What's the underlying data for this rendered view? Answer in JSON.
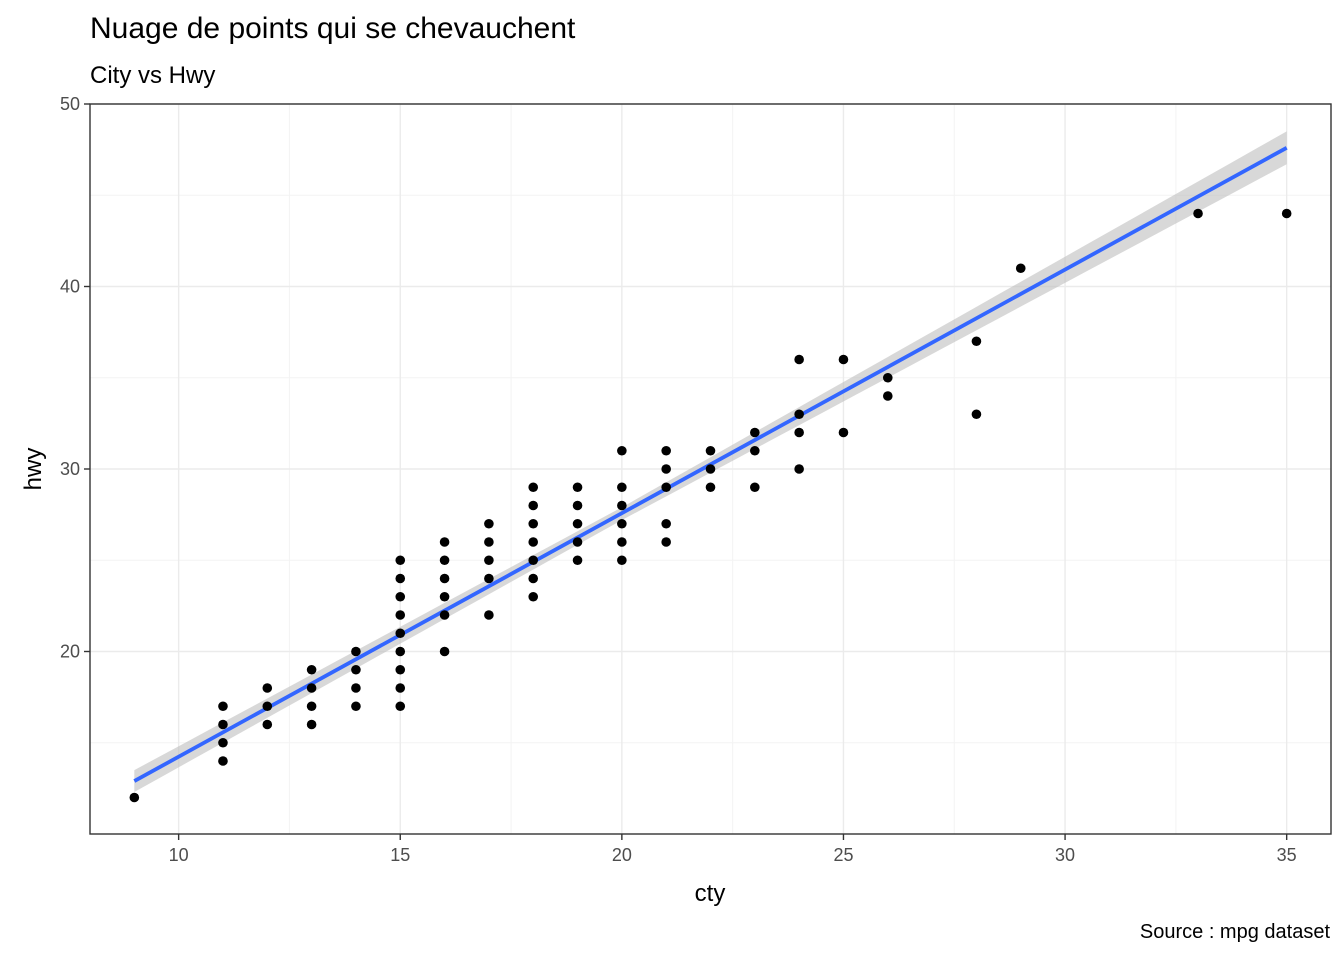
{
  "chart_data": {
    "type": "scatter",
    "title": "Nuage de points qui se chevauchent",
    "subtitle": "City vs Hwy",
    "caption": "Source : mpg dataset",
    "xlabel": "cty",
    "ylabel": "hwy",
    "xlim": [
      8,
      36
    ],
    "ylim": [
      10,
      50
    ],
    "x_ticks": [
      10,
      15,
      20,
      25,
      30,
      35
    ],
    "y_ticks": [
      20,
      30,
      40,
      50
    ],
    "grid": true,
    "points": [
      [
        9,
        12
      ],
      [
        11,
        14
      ],
      [
        11,
        15
      ],
      [
        11,
        16
      ],
      [
        11,
        17
      ],
      [
        12,
        16
      ],
      [
        12,
        17
      ],
      [
        12,
        18
      ],
      [
        13,
        16
      ],
      [
        13,
        17
      ],
      [
        13,
        18
      ],
      [
        13,
        19
      ],
      [
        14,
        17
      ],
      [
        14,
        18
      ],
      [
        14,
        19
      ],
      [
        14,
        20
      ],
      [
        15,
        17
      ],
      [
        15,
        18
      ],
      [
        15,
        19
      ],
      [
        15,
        20
      ],
      [
        15,
        21
      ],
      [
        15,
        22
      ],
      [
        15,
        23
      ],
      [
        15,
        24
      ],
      [
        15,
        25
      ],
      [
        16,
        20
      ],
      [
        16,
        22
      ],
      [
        16,
        23
      ],
      [
        16,
        24
      ],
      [
        16,
        25
      ],
      [
        16,
        26
      ],
      [
        17,
        22
      ],
      [
        17,
        24
      ],
      [
        17,
        25
      ],
      [
        17,
        26
      ],
      [
        17,
        27
      ],
      [
        18,
        23
      ],
      [
        18,
        24
      ],
      [
        18,
        25
      ],
      [
        18,
        26
      ],
      [
        18,
        27
      ],
      [
        18,
        28
      ],
      [
        18,
        29
      ],
      [
        19,
        25
      ],
      [
        19,
        26
      ],
      [
        19,
        27
      ],
      [
        19,
        28
      ],
      [
        19,
        29
      ],
      [
        20,
        25
      ],
      [
        20,
        26
      ],
      [
        20,
        27
      ],
      [
        20,
        28
      ],
      [
        20,
        29
      ],
      [
        20,
        31
      ],
      [
        21,
        26
      ],
      [
        21,
        27
      ],
      [
        21,
        29
      ],
      [
        21,
        30
      ],
      [
        21,
        31
      ],
      [
        22,
        29
      ],
      [
        22,
        30
      ],
      [
        22,
        31
      ],
      [
        23,
        29
      ],
      [
        23,
        31
      ],
      [
        23,
        32
      ],
      [
        24,
        30
      ],
      [
        24,
        32
      ],
      [
        24,
        33
      ],
      [
        24,
        36
      ],
      [
        25,
        32
      ],
      [
        25,
        36
      ],
      [
        26,
        34
      ],
      [
        26,
        35
      ],
      [
        28,
        33
      ],
      [
        28,
        37
      ],
      [
        29,
        41
      ],
      [
        33,
        44
      ],
      [
        35,
        44
      ]
    ],
    "fit": {
      "method": "lm",
      "x": [
        9,
        35
      ],
      "y": [
        12.9,
        47.6
      ],
      "se_band": [
        [
          9,
          12.3,
          13.5
        ],
        [
          20,
          27.2,
          27.9
        ],
        [
          35,
          46.7,
          48.5
        ]
      ]
    },
    "colors": {
      "points": "#000000",
      "fit_line": "#3366FF",
      "se_band": "#BEBEBE",
      "grid_major": "#EBEBEB",
      "grid_minor": "#F3F3F3",
      "panel_border": "#333333"
    }
  }
}
